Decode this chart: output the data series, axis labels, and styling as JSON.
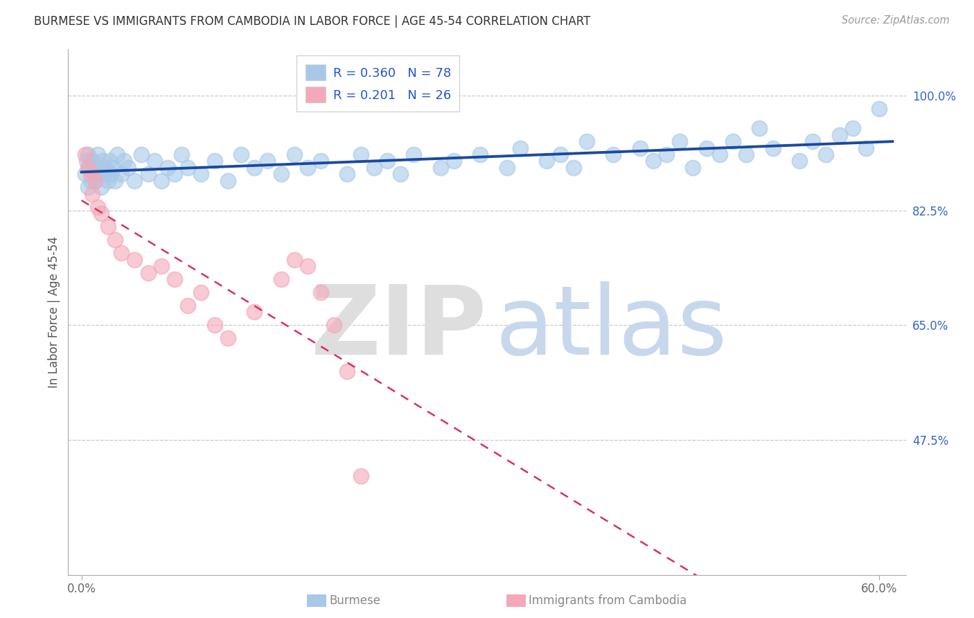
{
  "title": "BURMESE VS IMMIGRANTS FROM CAMBODIA IN LABOR FORCE | AGE 45-54 CORRELATION CHART",
  "source": "Source: ZipAtlas.com",
  "ylabel": "In Labor Force | Age 45-54",
  "legend_label1": "Burmese",
  "legend_label2": "Immigrants from Cambodia",
  "R1": 0.36,
  "N1": 78,
  "R2": 0.201,
  "N2": 26,
  "xlim": [
    -1.0,
    62.0
  ],
  "ylim": [
    27.0,
    107.0
  ],
  "ytick_vals": [
    47.5,
    65.0,
    82.5,
    100.0
  ],
  "ytick_labels": [
    "47.5%",
    "65.0%",
    "82.5%",
    "100.0%"
  ],
  "xtick_vals": [
    0.0,
    60.0
  ],
  "xtick_labels": [
    "0.0%",
    "60.0%"
  ],
  "color_blue": "#a8c8e8",
  "color_pink": "#f4a8b8",
  "line_blue": "#1a4a9e",
  "line_pink": "#d83060",
  "grid_color": "#c8c8c8",
  "blue_x": [
    0.3,
    0.4,
    0.5,
    0.5,
    0.6,
    0.7,
    0.8,
    0.9,
    1.0,
    1.1,
    1.2,
    1.3,
    1.5,
    1.6,
    1.7,
    1.8,
    2.0,
    2.1,
    2.2,
    2.4,
    2.5,
    2.7,
    3.0,
    3.2,
    3.5,
    4.0,
    4.5,
    5.0,
    5.5,
    6.0,
    6.5,
    7.0,
    7.5,
    8.0,
    9.0,
    10.0,
    11.0,
    12.0,
    13.0,
    14.0,
    15.0,
    16.0,
    17.0,
    18.0,
    20.0,
    21.0,
    22.0,
    23.0,
    24.0,
    25.0,
    27.0,
    28.0,
    30.0,
    32.0,
    33.0,
    35.0,
    36.0,
    37.0,
    38.0,
    40.0,
    42.0,
    43.0,
    44.0,
    45.0,
    46.0,
    47.0,
    48.0,
    49.0,
    50.0,
    51.0,
    52.0,
    54.0,
    55.0,
    56.0,
    57.0,
    58.0,
    59.0,
    60.0
  ],
  "blue_y": [
    88.0,
    90.0,
    86.0,
    91.0,
    89.0,
    87.0,
    90.0,
    88.0,
    87.0,
    89.0,
    91.0,
    88.0,
    86.0,
    90.0,
    88.0,
    89.0,
    87.0,
    90.0,
    88.0,
    89.0,
    87.0,
    91.0,
    88.0,
    90.0,
    89.0,
    87.0,
    91.0,
    88.0,
    90.0,
    87.0,
    89.0,
    88.0,
    91.0,
    89.0,
    88.0,
    90.0,
    87.0,
    91.0,
    89.0,
    90.0,
    88.0,
    91.0,
    89.0,
    90.0,
    88.0,
    91.0,
    89.0,
    90.0,
    88.0,
    91.0,
    89.0,
    90.0,
    91.0,
    89.0,
    92.0,
    90.0,
    91.0,
    89.0,
    93.0,
    91.0,
    92.0,
    90.0,
    91.0,
    93.0,
    89.0,
    92.0,
    91.0,
    93.0,
    91.0,
    95.0,
    92.0,
    90.0,
    93.0,
    91.0,
    94.0,
    95.0,
    92.0,
    98.0
  ],
  "pink_x": [
    0.3,
    0.5,
    0.7,
    0.8,
    1.0,
    1.2,
    1.5,
    2.0,
    2.5,
    3.0,
    4.0,
    5.0,
    6.0,
    7.0,
    8.0,
    9.0,
    10.0,
    11.0,
    13.0,
    15.0,
    16.0,
    17.0,
    18.0,
    19.0,
    20.0,
    21.0
  ],
  "pink_y": [
    91.0,
    89.0,
    88.0,
    85.0,
    87.0,
    83.0,
    82.0,
    80.0,
    78.0,
    76.0,
    75.0,
    73.0,
    74.0,
    72.0,
    68.0,
    70.0,
    65.0,
    63.0,
    67.0,
    72.0,
    75.0,
    74.0,
    70.0,
    65.0,
    58.0,
    42.0
  ]
}
